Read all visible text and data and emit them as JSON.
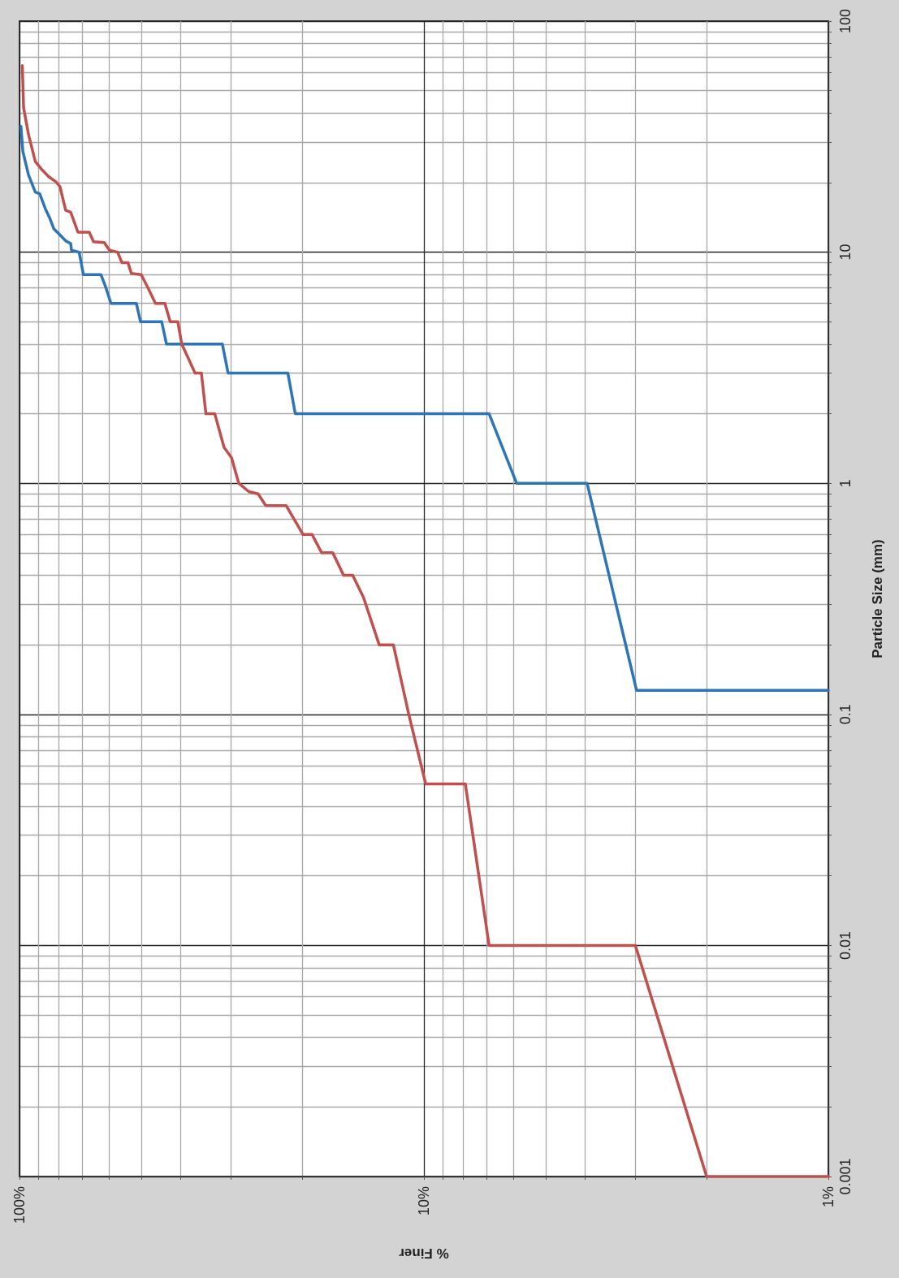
{
  "chart_data": {
    "type": "line",
    "xlabel": "% Finer",
    "ylabel": "Particle Size (mm)",
    "log": "xy",
    "xlim": [
      100,
      1
    ],
    "ylim": [
      0.001,
      100
    ],
    "xticks": [
      {
        "value": 1,
        "label": "1%"
      },
      {
        "value": 10,
        "label": "10%"
      },
      {
        "value": 100,
        "label": "100%"
      }
    ],
    "yticks": [
      0.001,
      0.01,
      0.1,
      1,
      10,
      100
    ],
    "grid": true,
    "marker": "none",
    "line_style": "solid",
    "series": [
      {
        "color": "#2e75b6",
        "x": [
          99.2,
          98.1,
          95.0,
          91.4,
          89.1,
          86.3,
          84.1,
          82.2,
          79.9,
          76.9,
          74.7,
          74.4,
          71.2,
          69.5,
          62.9,
          61.1,
          59.4,
          51.4,
          50.2,
          44.5,
          43.3,
          31.5,
          30.5,
          21.7,
          20.8,
          6.9,
          5.9,
          3.95,
          2.98,
          1.0
        ],
        "values": [
          35.1,
          27.3,
          21.6,
          18.2,
          17.9,
          15.4,
          14.0,
          12.6,
          12.0,
          11.2,
          10.9,
          10.2,
          10.0,
          8.0,
          8.0,
          7.0,
          6.0,
          6.0,
          5.0,
          5.0,
          4.0,
          4.0,
          3.0,
          3.0,
          2.0,
          2.0,
          1.0,
          1.0,
          0.127,
          0.127
        ]
      },
      {
        "color": "#c0504d",
        "x": [
          98.4,
          97.7,
          95.0,
          91.4,
          87.9,
          84.6,
          81.4,
          79.4,
          76.9,
          74.7,
          71.7,
          67.2,
          65.6,
          61.7,
          59.9,
          57.2,
          55.8,
          53.9,
          52.9,
          50.0,
          48.1,
          46.1,
          43.7,
          42.4,
          40.6,
          39.7,
          36.8,
          35.5,
          34.6,
          32.9,
          31.2,
          29.9,
          28.7,
          27.1,
          25.7,
          24.6,
          21.9,
          19.9,
          18.9,
          17.9,
          16.8,
          15.8,
          15.0,
          14.1,
          12.9,
          11.9,
          10.9,
          9.9,
          7.9,
          6.9,
          3.0,
          2.0,
          1.0
        ],
        "values": [
          64.2,
          42.2,
          32.3,
          24.7,
          22.7,
          21.2,
          20.2,
          19.2,
          15.2,
          14.9,
          12.2,
          12.2,
          11.1,
          11.0,
          10.2,
          10.0,
          9.0,
          9.0,
          8.1,
          8.0,
          7.0,
          6.0,
          6.0,
          5.0,
          5.0,
          4.0,
          3.0,
          3.0,
          2.0,
          2.0,
          1.43,
          1.29,
          1.0,
          0.92,
          0.9,
          0.8,
          0.8,
          0.6,
          0.6,
          0.5,
          0.5,
          0.4,
          0.4,
          0.32,
          0.2,
          0.2,
          0.1,
          0.05,
          0.05,
          0.01,
          0.01,
          0.001,
          0.001
        ]
      }
    ]
  }
}
